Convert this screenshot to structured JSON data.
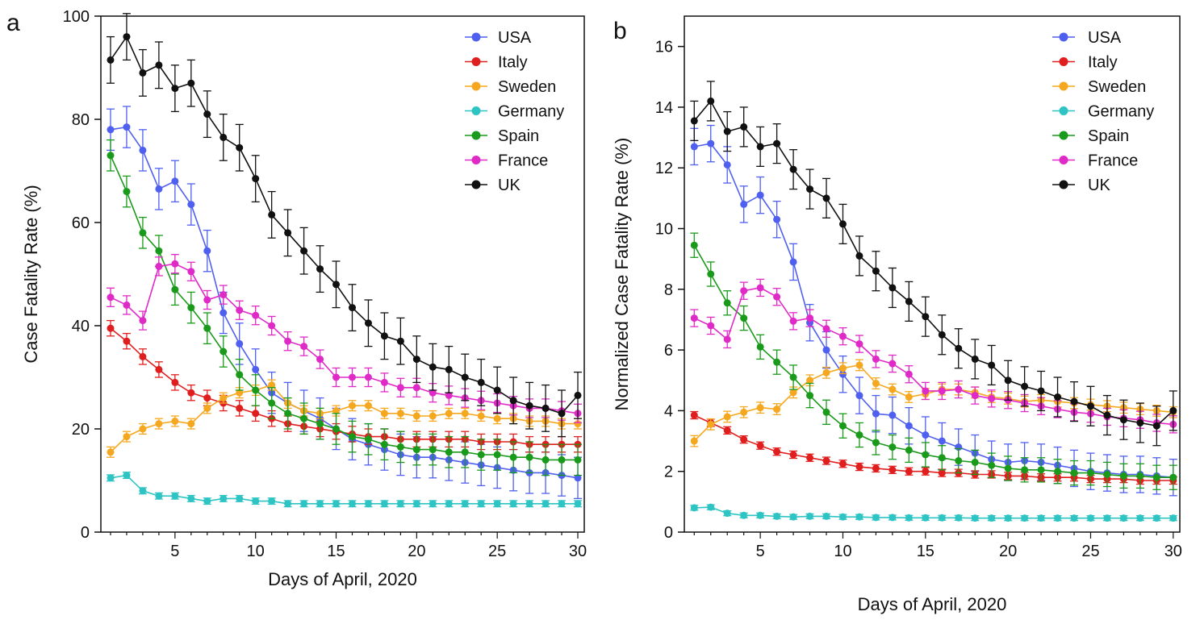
{
  "chart_data": [
    {
      "panel_label": "a",
      "type": "line",
      "title": "",
      "xlabel": "Days of April, 2020",
      "ylabel": "Case Fatality Rate (%)",
      "xlim": [
        0.4,
        30.4
      ],
      "ylim": [
        0,
        100
      ],
      "xticks": [
        5,
        10,
        15,
        20,
        25,
        30
      ],
      "yticks": [
        0,
        20,
        40,
        60,
        80,
        100
      ],
      "legend_position": "top-right",
      "grid": false,
      "x": [
        1,
        2,
        3,
        4,
        5,
        6,
        7,
        8,
        9,
        10,
        11,
        12,
        13,
        14,
        15,
        16,
        17,
        18,
        19,
        20,
        21,
        22,
        23,
        24,
        25,
        26,
        27,
        28,
        29,
        30
      ],
      "series": [
        {
          "name": "USA",
          "color": "#4f5ff0",
          "values": [
            78,
            78.5,
            74,
            66.5,
            68,
            63.5,
            54.5,
            42.5,
            36.5,
            31.5,
            27,
            25,
            23.5,
            22,
            20,
            18,
            17,
            16,
            15,
            14.5,
            14.5,
            14,
            13.5,
            13,
            12.5,
            12,
            11.5,
            11.5,
            11,
            10.5
          ],
          "errors": [
            4,
            4,
            4,
            4,
            4,
            4,
            4,
            4,
            4,
            4,
            4,
            4,
            4,
            4,
            4,
            4,
            4,
            4,
            4,
            4,
            4,
            4,
            4,
            4,
            4,
            4,
            4,
            4,
            4,
            4
          ]
        },
        {
          "name": "Italy",
          "color": "#e01e1e",
          "values": [
            39.5,
            37,
            34,
            31.5,
            29,
            27,
            26,
            25,
            24,
            23,
            22,
            21,
            20.5,
            20,
            19.5,
            19,
            18.5,
            18.5,
            18,
            18,
            18,
            18,
            18,
            17.5,
            17.5,
            17.5,
            17,
            17,
            17,
            17
          ],
          "errors": [
            1.5,
            1.5,
            1.5,
            1.5,
            1.5,
            1.5,
            1.5,
            1.5,
            1.5,
            1.5,
            1.5,
            1.5,
            1.5,
            1.5,
            1.5,
            1.5,
            1.5,
            1.5,
            1.5,
            1.5,
            1.5,
            1.5,
            1.5,
            1.5,
            1.5,
            1.5,
            1.5,
            1.5,
            1.5,
            1.5
          ]
        },
        {
          "name": "Sweden",
          "color": "#f5a81f",
          "values": [
            15.5,
            18.5,
            20,
            21,
            21.5,
            21,
            24,
            26,
            27,
            27.5,
            28.5,
            25,
            23.5,
            23,
            23.5,
            24.5,
            24.5,
            23,
            23,
            22.5,
            22.5,
            23,
            23,
            22.5,
            22,
            22,
            21.5,
            21.5,
            21,
            21
          ],
          "errors": [
            1,
            1,
            1,
            1,
            1,
            1,
            1,
            1,
            1,
            1,
            1,
            1,
            1,
            1,
            1,
            1,
            1,
            1,
            1,
            1,
            1,
            1,
            1,
            1,
            1,
            1,
            1,
            1,
            1,
            1
          ]
        },
        {
          "name": "Germany",
          "color": "#2ec4c4",
          "values": [
            10.5,
            11,
            8,
            7,
            7,
            6.5,
            6,
            6.5,
            6.5,
            6,
            6,
            5.5,
            5.5,
            5.5,
            5.5,
            5.5,
            5.5,
            5.5,
            5.5,
            5.5,
            5.5,
            5.5,
            5.5,
            5.5,
            5.5,
            5.5,
            5.5,
            5.5,
            5.5,
            5.5
          ],
          "errors": [
            0.6,
            0.6,
            0.6,
            0.6,
            0.6,
            0.6,
            0.6,
            0.6,
            0.6,
            0.6,
            0.6,
            0.6,
            0.6,
            0.6,
            0.6,
            0.6,
            0.6,
            0.6,
            0.6,
            0.6,
            0.6,
            0.6,
            0.6,
            0.6,
            0.6,
            0.6,
            0.6,
            0.6,
            0.6,
            0.6
          ]
        },
        {
          "name": "Spain",
          "color": "#1a9a1a",
          "values": [
            73,
            66,
            58,
            54.5,
            47,
            43.5,
            39.5,
            35,
            30.5,
            27.5,
            25,
            23,
            22,
            21,
            20,
            18.5,
            18,
            17,
            16.5,
            16,
            16,
            15.5,
            15.5,
            15,
            15,
            14.5,
            14.5,
            14,
            14,
            14
          ],
          "errors": [
            3,
            3,
            3,
            3,
            3,
            3,
            3,
            3,
            3,
            3,
            3,
            3,
            3,
            3,
            3,
            3,
            3,
            3,
            3,
            3,
            3,
            3,
            3,
            3,
            3,
            3,
            3,
            3,
            3,
            3
          ]
        },
        {
          "name": "France",
          "color": "#e02ac8",
          "values": [
            45.5,
            44,
            41,
            51.5,
            52,
            50.5,
            45,
            46,
            43,
            42,
            40,
            37,
            36,
            33.5,
            30,
            30,
            30,
            29,
            28,
            28,
            27,
            26.5,
            26,
            25.5,
            25,
            24.5,
            24,
            24,
            23.5,
            23
          ],
          "errors": [
            1.8,
            1.8,
            1.8,
            1.8,
            1.8,
            1.8,
            1.8,
            1.8,
            1.8,
            1.8,
            1.8,
            1.8,
            1.8,
            1.8,
            1.8,
            1.8,
            1.8,
            1.8,
            1.8,
            1.8,
            1.8,
            1.8,
            1.8,
            1.8,
            1.8,
            1.8,
            1.8,
            1.8,
            1.8,
            1.8
          ]
        },
        {
          "name": "UK",
          "color": "#111111",
          "values": [
            91.5,
            96,
            89,
            90.5,
            86,
            87,
            81,
            76.5,
            74.5,
            68.5,
            61.5,
            58,
            54.5,
            51,
            48,
            43.5,
            40.5,
            38,
            37,
            33.5,
            32,
            31.5,
            30,
            29,
            27.5,
            25.5,
            24.5,
            24,
            23,
            26.5
          ],
          "errors": [
            4.5,
            4.5,
            4.5,
            4.5,
            4.5,
            4.5,
            4.5,
            4.5,
            4.5,
            4.5,
            4.5,
            4.5,
            4.5,
            4.5,
            4.5,
            4.5,
            4.5,
            4.5,
            4.5,
            4.5,
            4.5,
            4.5,
            4.5,
            4.5,
            4.5,
            4.5,
            4.5,
            4.5,
            4.5,
            4.5
          ]
        }
      ]
    },
    {
      "panel_label": "b",
      "type": "line",
      "title": "",
      "xlabel": "Days of April, 2020",
      "ylabel": "Normalized Case Fatality Rate (%)",
      "xlim": [
        0.4,
        30.4
      ],
      "ylim": [
        0,
        17
      ],
      "xticks": [
        5,
        10,
        15,
        20,
        25,
        30
      ],
      "yticks": [
        0,
        2,
        4,
        6,
        8,
        10,
        12,
        14,
        16
      ],
      "legend_position": "top-right",
      "grid": false,
      "x": [
        1,
        2,
        3,
        4,
        5,
        6,
        7,
        8,
        9,
        10,
        11,
        12,
        13,
        14,
        15,
        16,
        17,
        18,
        19,
        20,
        21,
        22,
        23,
        24,
        25,
        26,
        27,
        28,
        29,
        30
      ],
      "series": [
        {
          "name": "USA",
          "color": "#4f5ff0",
          "values": [
            12.7,
            12.8,
            12.1,
            10.8,
            11.1,
            10.3,
            8.9,
            6.9,
            6,
            5.2,
            4.5,
            3.9,
            3.85,
            3.5,
            3.2,
            3,
            2.8,
            2.6,
            2.4,
            2.3,
            2.35,
            2.3,
            2.2,
            2.1,
            2,
            1.95,
            1.9,
            1.9,
            1.85,
            1.8
          ],
          "errors": [
            0.6,
            0.6,
            0.6,
            0.6,
            0.6,
            0.6,
            0.6,
            0.6,
            0.6,
            0.6,
            0.6,
            0.6,
            0.6,
            0.6,
            0.6,
            0.6,
            0.6,
            0.6,
            0.6,
            0.6,
            0.6,
            0.6,
            0.6,
            0.6,
            0.6,
            0.6,
            0.6,
            0.6,
            0.6,
            0.6
          ]
        },
        {
          "name": "Italy",
          "color": "#e01e1e",
          "values": [
            3.85,
            3.6,
            3.35,
            3.05,
            2.85,
            2.65,
            2.55,
            2.45,
            2.35,
            2.25,
            2.15,
            2.1,
            2.05,
            2.0,
            2.0,
            1.95,
            1.95,
            1.9,
            1.9,
            1.85,
            1.85,
            1.8,
            1.8,
            1.8,
            1.75,
            1.75,
            1.75,
            1.7,
            1.7,
            1.7
          ],
          "errors": [
            0.12,
            0.12,
            0.12,
            0.12,
            0.12,
            0.12,
            0.12,
            0.12,
            0.12,
            0.12,
            0.12,
            0.12,
            0.12,
            0.12,
            0.12,
            0.12,
            0.12,
            0.12,
            0.12,
            0.12,
            0.12,
            0.12,
            0.12,
            0.12,
            0.12,
            0.12,
            0.12,
            0.12,
            0.12,
            0.12
          ]
        },
        {
          "name": "Sweden",
          "color": "#f5a81f",
          "values": [
            3,
            3.55,
            3.8,
            3.95,
            4.1,
            4.05,
            4.6,
            5,
            5.25,
            5.4,
            5.5,
            4.9,
            4.7,
            4.45,
            4.55,
            4.7,
            4.7,
            4.6,
            4.45,
            4.4,
            4.3,
            4.35,
            4.3,
            4.25,
            4.2,
            4.15,
            4.1,
            4.05,
            4.0,
            3.95
          ],
          "errors": [
            0.18,
            0.18,
            0.18,
            0.18,
            0.18,
            0.18,
            0.18,
            0.18,
            0.18,
            0.18,
            0.18,
            0.18,
            0.18,
            0.18,
            0.18,
            0.18,
            0.18,
            0.18,
            0.18,
            0.18,
            0.18,
            0.18,
            0.18,
            0.18,
            0.18,
            0.18,
            0.18,
            0.18,
            0.18,
            0.18
          ]
        },
        {
          "name": "Germany",
          "color": "#2ec4c4",
          "values": [
            0.8,
            0.82,
            0.62,
            0.55,
            0.55,
            0.52,
            0.5,
            0.52,
            0.52,
            0.5,
            0.5,
            0.48,
            0.48,
            0.47,
            0.47,
            0.47,
            0.47,
            0.46,
            0.46,
            0.46,
            0.46,
            0.46,
            0.46,
            0.46,
            0.46,
            0.46,
            0.46,
            0.46,
            0.46,
            0.46
          ],
          "errors": [
            0.08,
            0.08,
            0.08,
            0.08,
            0.08,
            0.08,
            0.08,
            0.08,
            0.08,
            0.08,
            0.08,
            0.08,
            0.08,
            0.08,
            0.08,
            0.08,
            0.08,
            0.08,
            0.08,
            0.08,
            0.08,
            0.08,
            0.08,
            0.08,
            0.08,
            0.08,
            0.08,
            0.08,
            0.08,
            0.08
          ]
        },
        {
          "name": "Spain",
          "color": "#1a9a1a",
          "values": [
            9.45,
            8.5,
            7.55,
            7.05,
            6.1,
            5.6,
            5.1,
            4.5,
            3.95,
            3.5,
            3.2,
            2.95,
            2.8,
            2.7,
            2.55,
            2.45,
            2.35,
            2.3,
            2.2,
            2.1,
            2.05,
            2.05,
            2.0,
            1.95,
            1.95,
            1.9,
            1.85,
            1.85,
            1.8,
            1.8
          ],
          "errors": [
            0.4,
            0.4,
            0.4,
            0.4,
            0.4,
            0.4,
            0.4,
            0.4,
            0.4,
            0.4,
            0.4,
            0.4,
            0.4,
            0.4,
            0.4,
            0.4,
            0.4,
            0.4,
            0.4,
            0.4,
            0.4,
            0.4,
            0.4,
            0.4,
            0.4,
            0.4,
            0.4,
            0.4,
            0.4,
            0.4
          ]
        },
        {
          "name": "France",
          "color": "#e02ac8",
          "values": [
            7.05,
            6.8,
            6.35,
            7.95,
            8.05,
            7.75,
            6.95,
            7.05,
            6.7,
            6.45,
            6.2,
            5.7,
            5.55,
            5.2,
            4.65,
            4.65,
            4.7,
            4.5,
            4.4,
            4.35,
            4.25,
            4.15,
            4.05,
            3.95,
            3.9,
            3.8,
            3.75,
            3.7,
            3.6,
            3.55
          ],
          "errors": [
            0.28,
            0.28,
            0.28,
            0.28,
            0.28,
            0.28,
            0.28,
            0.28,
            0.28,
            0.28,
            0.28,
            0.28,
            0.28,
            0.28,
            0.28,
            0.28,
            0.28,
            0.28,
            0.28,
            0.28,
            0.28,
            0.28,
            0.28,
            0.28,
            0.28,
            0.28,
            0.28,
            0.28,
            0.28,
            0.28
          ]
        },
        {
          "name": "UK",
          "color": "#111111",
          "values": [
            13.55,
            14.2,
            13.2,
            13.35,
            12.7,
            12.8,
            11.95,
            11.3,
            11,
            10.15,
            9.1,
            8.6,
            8.05,
            7.6,
            7.1,
            6.5,
            6.05,
            5.7,
            5.5,
            5,
            4.8,
            4.65,
            4.45,
            4.3,
            4.15,
            3.85,
            3.7,
            3.6,
            3.5,
            4
          ],
          "errors": [
            0.65,
            0.65,
            0.65,
            0.65,
            0.65,
            0.65,
            0.65,
            0.65,
            0.65,
            0.65,
            0.65,
            0.65,
            0.65,
            0.65,
            0.65,
            0.65,
            0.65,
            0.65,
            0.65,
            0.65,
            0.65,
            0.65,
            0.65,
            0.65,
            0.65,
            0.65,
            0.65,
            0.65,
            0.65,
            0.65
          ]
        }
      ]
    }
  ]
}
